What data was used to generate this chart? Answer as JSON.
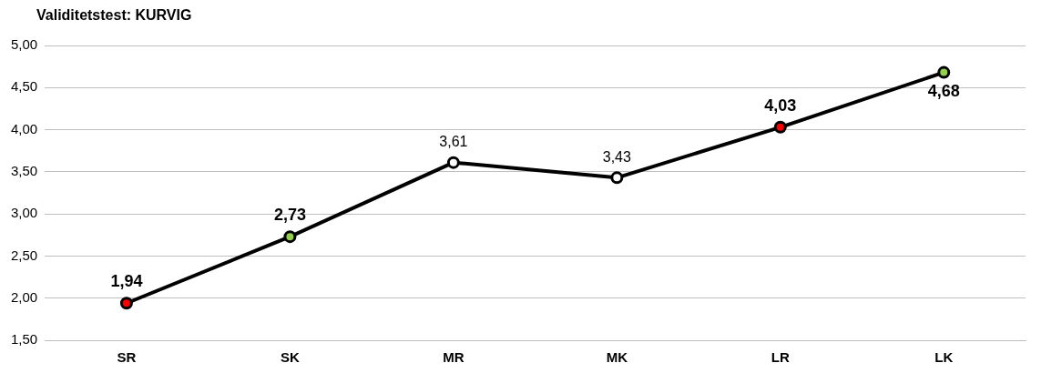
{
  "chart_data": {
    "type": "line",
    "title": "Validitetstest: KURVIG",
    "categories": [
      "SR",
      "SK",
      "MR",
      "MK",
      "LR",
      "LK"
    ],
    "series": [
      {
        "color": "#000000",
        "values": [
          1.94,
          2.73,
          3.61,
          3.43,
          4.03,
          4.68
        ],
        "colors": [
          "#ff0000",
          "#92d050",
          "#ffffff",
          "#ffffff",
          "#ff0000",
          "#92d050"
        ],
        "value_labels": [
          "1,94",
          "2,73",
          "3,61",
          "3,43",
          "4,03",
          "4,68"
        ]
      }
    ],
    "ylim": [
      1.5,
      5
    ],
    "yticks": [
      {
        "value": 1.5,
        "label": "1,50"
      },
      {
        "value": 2,
        "label": "2,00"
      },
      {
        "value": 2.5,
        "label": "2,50"
      },
      {
        "value": 3,
        "label": "3,00"
      },
      {
        "value": 3.5,
        "label": "3,50"
      },
      {
        "value": 4,
        "label": "4,00"
      },
      {
        "value": 4.5,
        "label": "4,50"
      },
      {
        "value": 5,
        "label": "5,00"
      }
    ],
    "grid": "y",
    "marker": "circle",
    "line_style": "solid",
    "legend": false
  }
}
